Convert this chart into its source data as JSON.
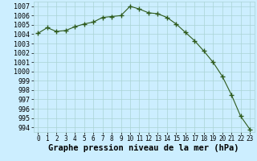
{
  "x": [
    0,
    1,
    2,
    3,
    4,
    5,
    6,
    7,
    8,
    9,
    10,
    11,
    12,
    13,
    14,
    15,
    16,
    17,
    18,
    19,
    20,
    21,
    22,
    23
  ],
  "y": [
    1004.1,
    1004.7,
    1004.3,
    1004.4,
    1004.8,
    1005.1,
    1005.3,
    1005.8,
    1005.9,
    1006.0,
    1007.0,
    1006.7,
    1006.3,
    1006.2,
    1005.8,
    1005.1,
    1004.2,
    1003.3,
    1002.2,
    1001.0,
    999.5,
    997.5,
    995.2,
    993.8
  ],
  "line_color": "#2d5a1b",
  "marker": "+",
  "marker_size": 4,
  "background_color": "#cceeff",
  "grid_color": "#aad4d4",
  "xlabel": "Graphe pression niveau de la mer (hPa)",
  "xlabel_fontsize": 7.5,
  "ylabel_fontsize": 6,
  "xtick_fontsize": 5.5,
  "ylim": [
    993.5,
    1007.5
  ],
  "xlim": [
    -0.5,
    23.5
  ],
  "yticks": [
    994,
    995,
    996,
    997,
    998,
    999,
    1000,
    1001,
    1002,
    1003,
    1004,
    1005,
    1006,
    1007
  ],
  "xticks": [
    0,
    1,
    2,
    3,
    4,
    5,
    6,
    7,
    8,
    9,
    10,
    11,
    12,
    13,
    14,
    15,
    16,
    17,
    18,
    19,
    20,
    21,
    22,
    23
  ],
  "line_width": 0.8
}
